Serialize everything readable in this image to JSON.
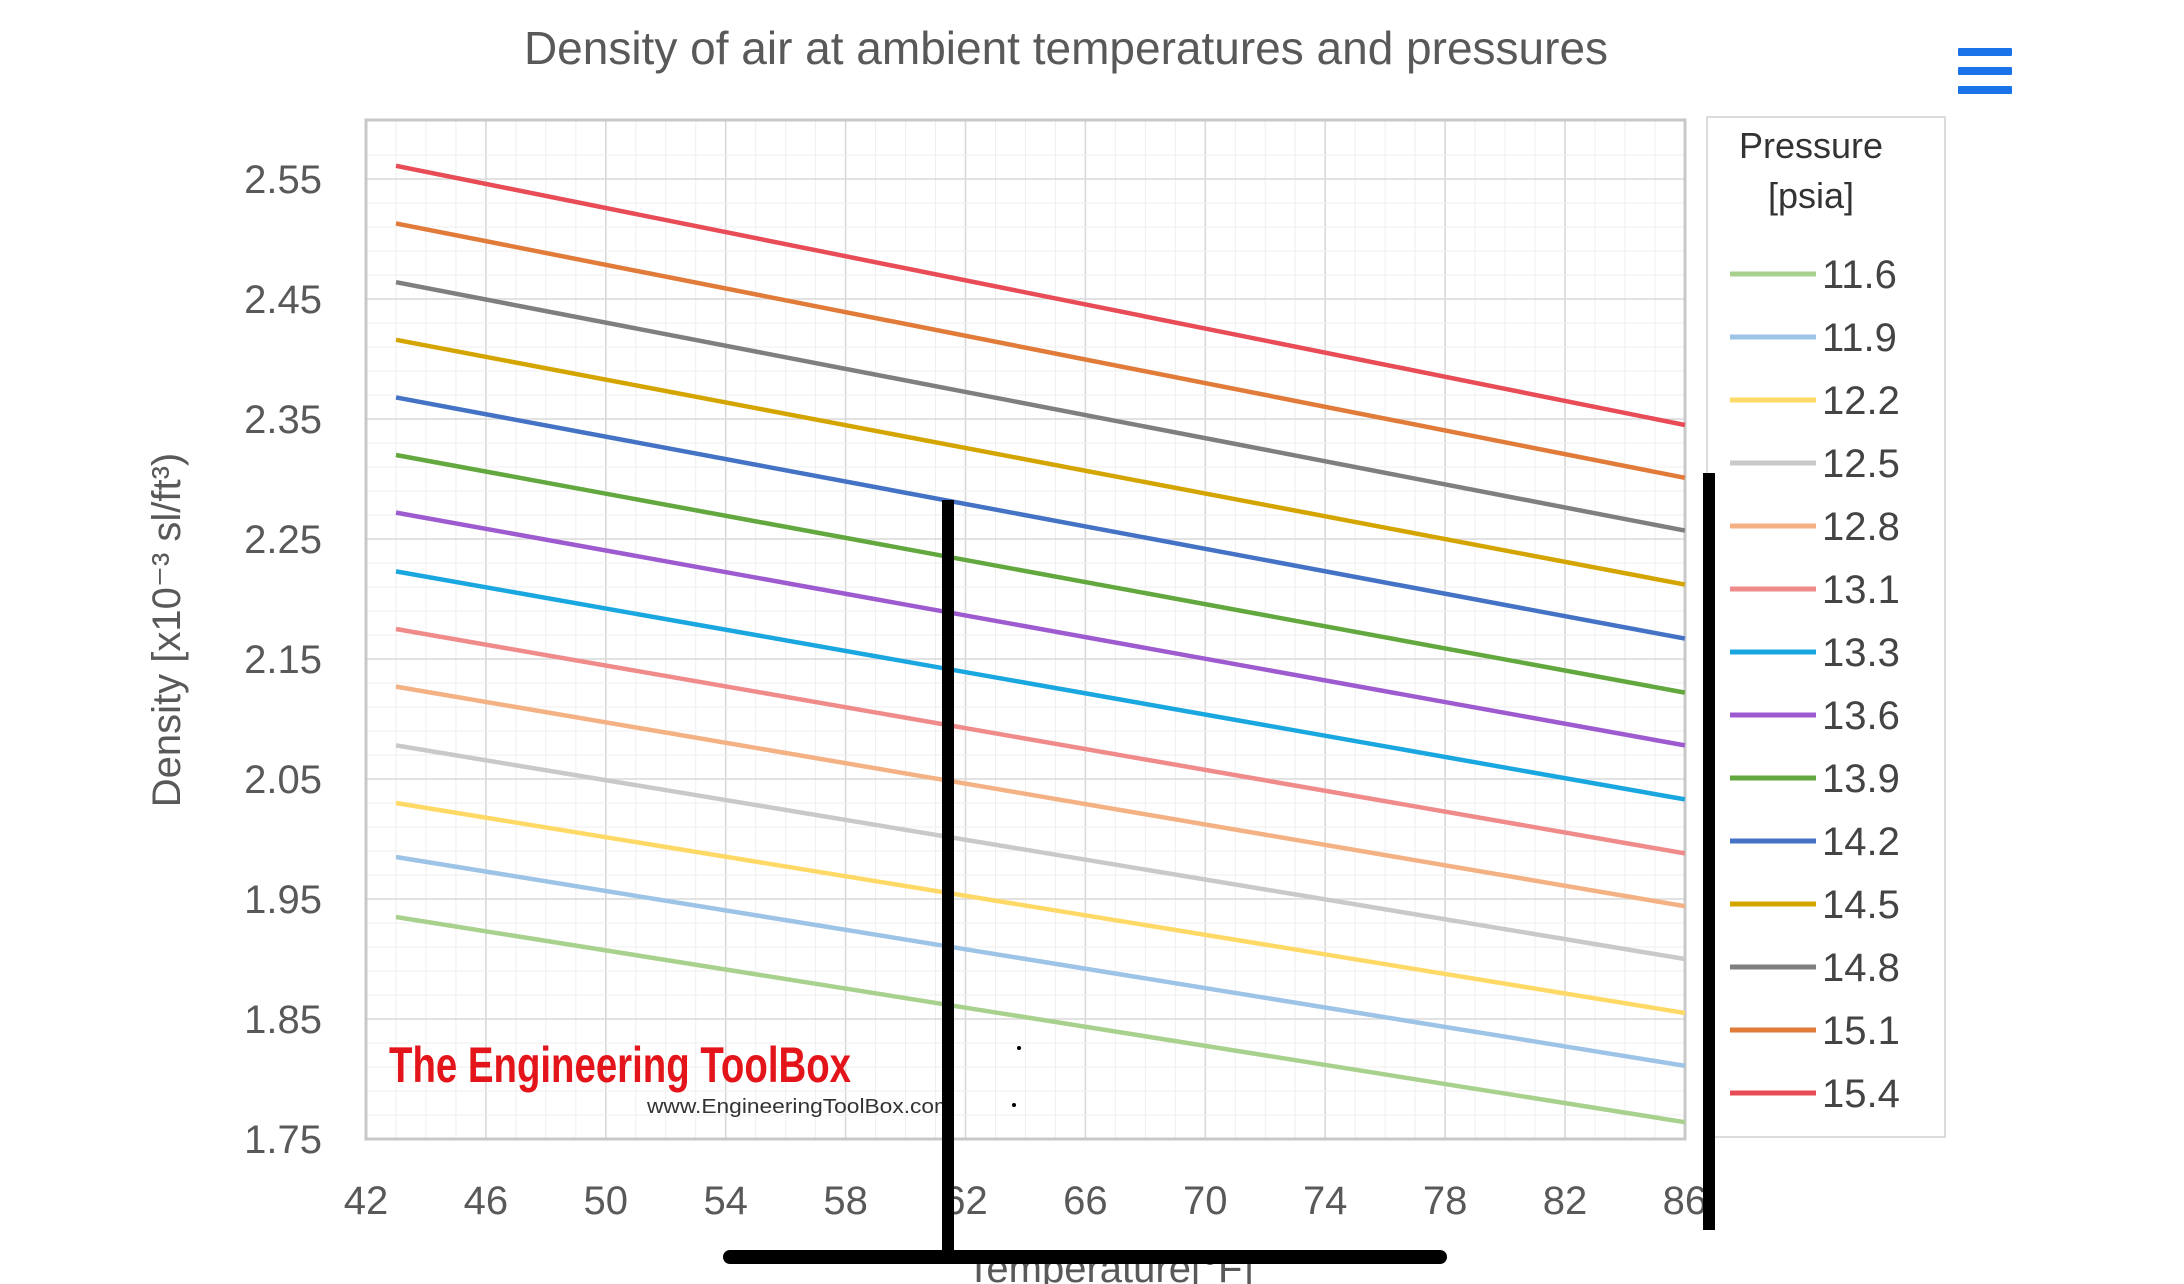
{
  "menu_icon": "hamburger-menu-icon",
  "colors": {
    "menu": "#1a73e8",
    "gridMajor": "#d9d9d9",
    "gridMinor": "#efefef",
    "plotBorder": "#c8c8c8",
    "axisText": "#595959",
    "overlay": "#000000"
  },
  "watermark": {
    "brand": "The Engineering ToolBox",
    "url": "www.EngineeringToolBox.com",
    "color": "#e3151a"
  },
  "chart_data": {
    "type": "line",
    "title": "Density of air at ambient temperatures and pressures",
    "xlabel": "Temperature[°F]",
    "ylabel": "Density [x10⁻³ sl/ft³)",
    "xlim": [
      42,
      86
    ],
    "ylim": [
      1.75,
      2.58
    ],
    "xticks": [
      "42",
      "46",
      "50",
      "54",
      "58",
      "62",
      "66",
      "70",
      "74",
      "78",
      "82",
      "86"
    ],
    "yticks": [
      "1.75",
      "1.85",
      "1.95",
      "2.05",
      "2.15",
      "2.25",
      "2.35",
      "2.45",
      "2.55"
    ],
    "grid": true,
    "legend_title": "Pressure [psia]",
    "legend_position": "right",
    "x": [
      43,
      86
    ],
    "series": [
      {
        "name": "11.6",
        "color": "#a9d18e",
        "values": [
          1.935,
          1.764
        ]
      },
      {
        "name": "11.9",
        "color": "#9dc3e6",
        "values": [
          1.985,
          1.811
        ]
      },
      {
        "name": "12.2",
        "color": "#ffd966",
        "values": [
          2.03,
          1.855
        ]
      },
      {
        "name": "12.5",
        "color": "#c9c9c9",
        "values": [
          2.078,
          1.9
        ]
      },
      {
        "name": "12.8",
        "color": "#f4b183",
        "values": [
          2.127,
          1.944
        ]
      },
      {
        "name": "13.1",
        "color": "#f08b8b",
        "values": [
          2.175,
          1.988
        ]
      },
      {
        "name": "13.3",
        "color": "#1aa7e0",
        "values": [
          2.223,
          2.033
        ]
      },
      {
        "name": "13.6",
        "color": "#9e5bd0",
        "values": [
          2.272,
          2.078
        ]
      },
      {
        "name": "13.9",
        "color": "#62a83f",
        "values": [
          2.32,
          2.122
        ]
      },
      {
        "name": "14.2",
        "color": "#4472c4",
        "values": [
          2.368,
          2.167
        ]
      },
      {
        "name": "14.5",
        "color": "#d4a500",
        "values": [
          2.416,
          2.212
        ]
      },
      {
        "name": "14.8",
        "color": "#7f7f7f",
        "values": [
          2.464,
          2.257
        ]
      },
      {
        "name": "15.1",
        "color": "#e07b39",
        "values": [
          2.513,
          2.301
        ]
      },
      {
        "name": "15.4",
        "color": "#e84c57",
        "values": [
          2.561,
          2.345
        ]
      }
    ]
  }
}
